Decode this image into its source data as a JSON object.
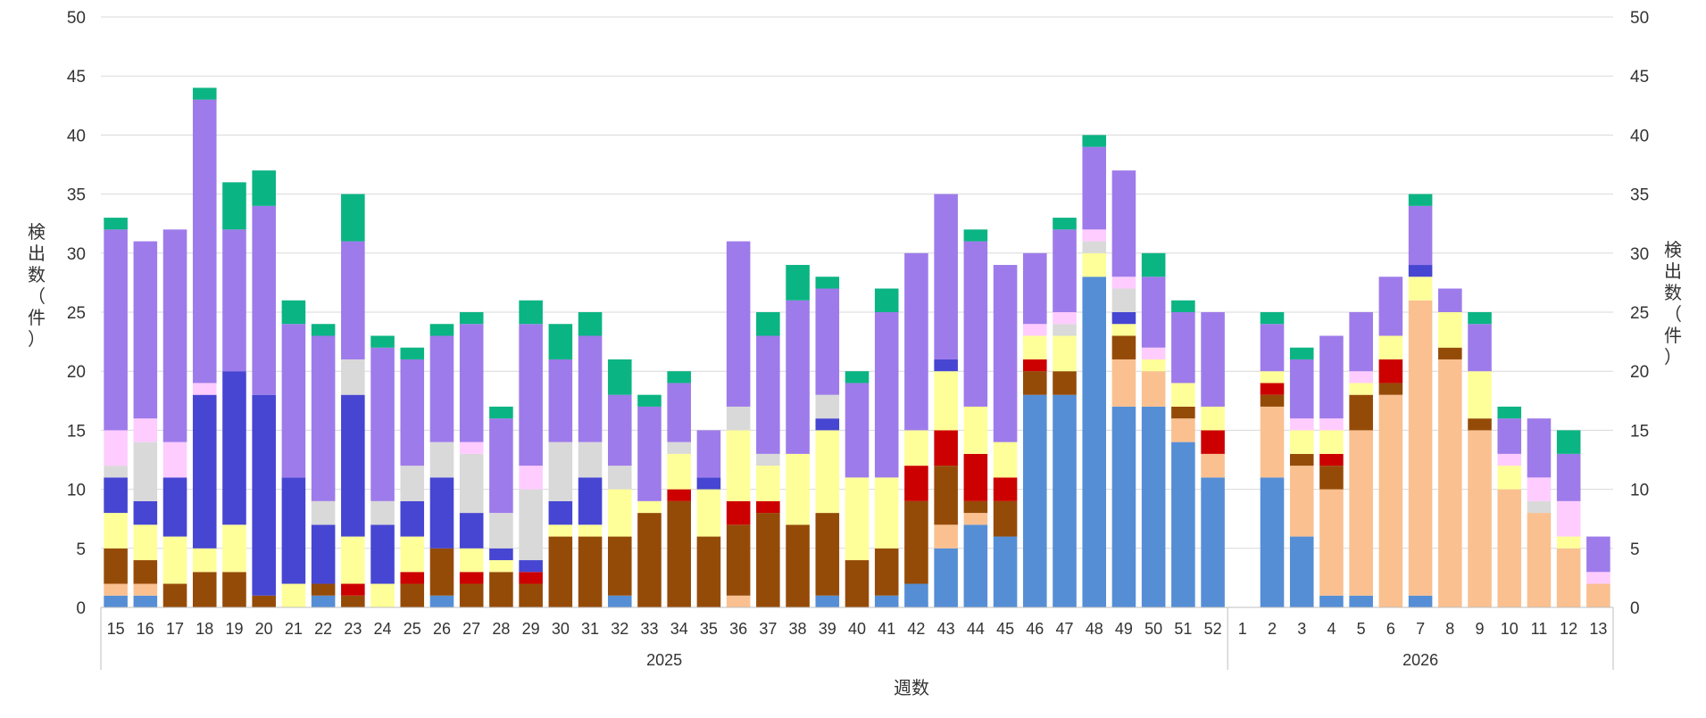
{
  "chart_data": {
    "type": "bar",
    "stacked": true,
    "title": "",
    "xlabel": "週数",
    "ylabel_left": "検出数（件）",
    "ylabel_right": "検出数（件）",
    "ylim": [
      0,
      50
    ],
    "yticks": [
      0,
      5,
      10,
      15,
      20,
      25,
      30,
      35,
      40,
      45,
      50
    ],
    "grid": true,
    "legend": "none",
    "categories": [
      "15",
      "16",
      "17",
      "18",
      "19",
      "20",
      "21",
      "22",
      "23",
      "24",
      "25",
      "26",
      "27",
      "28",
      "29",
      "30",
      "31",
      "32",
      "33",
      "34",
      "35",
      "36",
      "37",
      "38",
      "39",
      "40",
      "41",
      "42",
      "43",
      "44",
      "45",
      "46",
      "47",
      "48",
      "49",
      "50",
      "51",
      "52",
      "1",
      "2",
      "3",
      "4",
      "5",
      "6",
      "7",
      "8",
      "9",
      "10",
      "11",
      "12",
      "13"
    ],
    "groups": [
      {
        "label": "2025",
        "count": 38
      },
      {
        "label": "2026",
        "count": 13
      }
    ],
    "series": [
      {
        "color": "#558ED5",
        "values": [
          1,
          1,
          0,
          0,
          0,
          0,
          0,
          1,
          0,
          0,
          0,
          1,
          0,
          0,
          0,
          0,
          0,
          1,
          0,
          0,
          0,
          0,
          0,
          0,
          1,
          0,
          1,
          2,
          5,
          7,
          6,
          18,
          18,
          28,
          17,
          17,
          14,
          11,
          0,
          11,
          6,
          1,
          1,
          0,
          1,
          0,
          0,
          0,
          0,
          0,
          0
        ]
      },
      {
        "color": "#FAC090",
        "values": [
          1,
          1,
          0,
          0,
          0,
          0,
          0,
          0,
          0,
          0,
          0,
          0,
          0,
          0,
          0,
          0,
          0,
          0,
          0,
          0,
          0,
          1,
          0,
          0,
          0,
          0,
          0,
          0,
          2,
          1,
          0,
          0,
          0,
          0,
          4,
          3,
          2,
          2,
          0,
          6,
          6,
          9,
          14,
          18,
          25,
          21,
          15,
          10,
          8,
          5,
          2
        ]
      },
      {
        "color": "#954B08",
        "values": [
          3,
          2,
          2,
          3,
          3,
          1,
          0,
          1,
          1,
          0,
          2,
          4,
          2,
          3,
          2,
          6,
          6,
          5,
          8,
          9,
          6,
          6,
          8,
          7,
          7,
          4,
          4,
          7,
          5,
          1,
          3,
          2,
          2,
          0,
          2,
          0,
          1,
          0,
          0,
          1,
          1,
          2,
          3,
          1,
          0,
          1,
          1,
          0,
          0,
          0,
          0
        ]
      },
      {
        "color": "#CC0000",
        "values": [
          0,
          0,
          0,
          0,
          0,
          0,
          0,
          0,
          1,
          0,
          1,
          0,
          1,
          0,
          1,
          0,
          0,
          0,
          0,
          1,
          0,
          2,
          1,
          0,
          0,
          0,
          0,
          3,
          3,
          4,
          2,
          1,
          0,
          0,
          0,
          0,
          0,
          2,
          0,
          1,
          0,
          1,
          0,
          2,
          0,
          0,
          0,
          0,
          0,
          0,
          0
        ]
      },
      {
        "color": "#FFFF99",
        "values": [
          3,
          3,
          4,
          2,
          4,
          0,
          2,
          0,
          4,
          2,
          3,
          0,
          2,
          1,
          0,
          1,
          1,
          4,
          1,
          3,
          4,
          6,
          3,
          6,
          7,
          7,
          6,
          3,
          5,
          4,
          3,
          2,
          3,
          2,
          1,
          1,
          2,
          2,
          0,
          1,
          2,
          2,
          1,
          2,
          2,
          3,
          4,
          2,
          0,
          1,
          0
        ]
      },
      {
        "color": "#4646D2",
        "values": [
          3,
          2,
          5,
          13,
          13,
          17,
          9,
          5,
          12,
          5,
          3,
          6,
          3,
          1,
          1,
          2,
          4,
          0,
          0,
          0,
          1,
          0,
          0,
          0,
          1,
          0,
          0,
          0,
          1,
          0,
          0,
          0,
          0,
          0,
          1,
          0,
          0,
          0,
          0,
          0,
          0,
          0,
          0,
          0,
          1,
          0,
          0,
          0,
          0,
          0,
          0
        ]
      },
      {
        "color": "#D9D9D9",
        "values": [
          1,
          5,
          0,
          0,
          0,
          0,
          0,
          2,
          3,
          2,
          3,
          3,
          5,
          3,
          6,
          5,
          3,
          2,
          0,
          1,
          0,
          2,
          1,
          0,
          2,
          0,
          0,
          0,
          0,
          0,
          0,
          0,
          1,
          1,
          2,
          0,
          0,
          0,
          0,
          0,
          0,
          0,
          0,
          0,
          0,
          0,
          0,
          0,
          1,
          0,
          0
        ]
      },
      {
        "color": "#FFCCFF",
        "values": [
          3,
          2,
          3,
          1,
          0,
          0,
          0,
          0,
          0,
          0,
          0,
          0,
          1,
          0,
          2,
          0,
          0,
          0,
          0,
          0,
          0,
          0,
          0,
          0,
          0,
          0,
          0,
          0,
          0,
          0,
          0,
          1,
          1,
          1,
          1,
          1,
          0,
          0,
          0,
          0,
          1,
          1,
          1,
          0,
          0,
          0,
          0,
          1,
          2,
          3,
          1
        ]
      },
      {
        "color": "#9E7BEA",
        "values": [
          17,
          15,
          18,
          24,
          12,
          16,
          13,
          14,
          10,
          13,
          9,
          9,
          10,
          8,
          12,
          7,
          9,
          6,
          8,
          5,
          4,
          14,
          10,
          13,
          9,
          8,
          14,
          15,
          14,
          14,
          15,
          6,
          7,
          7,
          9,
          6,
          6,
          8,
          0,
          4,
          5,
          7,
          5,
          5,
          5,
          2,
          4,
          3,
          5,
          4,
          3
        ]
      },
      {
        "color": "#0BB483",
        "values": [
          1,
          0,
          0,
          1,
          4,
          3,
          2,
          1,
          4,
          1,
          1,
          1,
          1,
          1,
          2,
          3,
          2,
          3,
          1,
          1,
          0,
          0,
          2,
          3,
          1,
          1,
          2,
          0,
          0,
          1,
          0,
          0,
          1,
          1,
          0,
          2,
          1,
          0,
          0,
          1,
          1,
          0,
          0,
          0,
          1,
          0,
          1,
          1,
          0,
          2,
          0
        ]
      }
    ]
  }
}
